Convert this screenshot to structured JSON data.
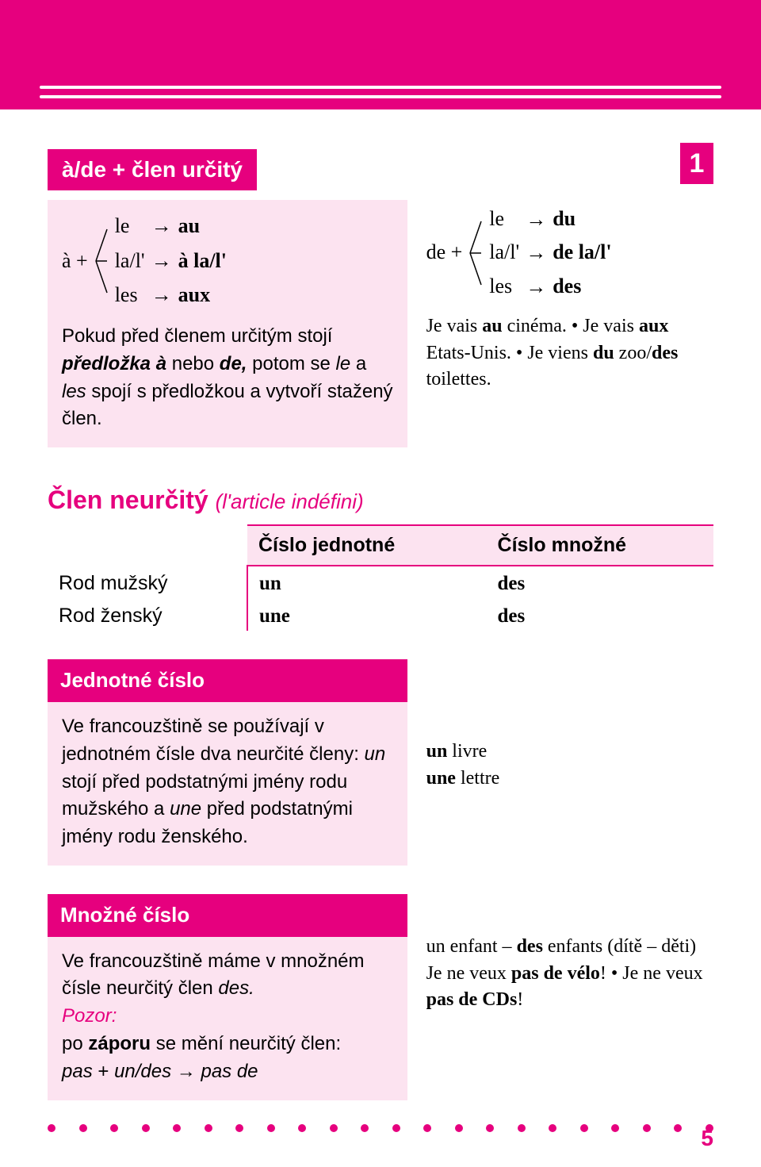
{
  "colors": {
    "accent": "#e6007e",
    "light": "#fce3f0",
    "text": "#000000",
    "white": "#ffffff"
  },
  "pageBadge": "1",
  "pageNumber": "5",
  "section1": {
    "title": "à/de + člen určitý",
    "left": {
      "prefix": "à  +",
      "rows": [
        {
          "from": "le",
          "to": "au"
        },
        {
          "from": "la/l'",
          "to": "à la/l'"
        },
        {
          "from": "les",
          "to": "aux"
        }
      ],
      "bodyHtml": "Pokud před členem určitým stojí <span class='boldital'>předložka à</span> nebo <span class='boldital'>de,</span> potom se <span class='italic'>le</span> a <span class='italic'>les</span> spojí s předložkou a vytvoří stažený člen."
    },
    "right": {
      "prefix": "de  +",
      "rows": [
        {
          "from": "le",
          "to": "du"
        },
        {
          "from": "la/l'",
          "to": "de la/l'"
        },
        {
          "from": "les",
          "to": "des"
        }
      ],
      "bodyHtml": "Je vais <span class='bold'>au</span> cinéma. • Je vais <span class='bold'>aux</span> Etats-Unis. • Je viens <span class='bold'>du</span> zoo/<span class='bold'>des</span> toilettes."
    }
  },
  "section2": {
    "heading": "Člen neurčitý",
    "subheading": "(l'article indéfini)",
    "table": {
      "headers": [
        "",
        "Číslo jednotné",
        "Číslo množné"
      ],
      "rows": [
        [
          "Rod mužský",
          "un",
          "des"
        ],
        [
          "Rod ženský",
          "une",
          "des"
        ]
      ]
    },
    "block1": {
      "title": "Jednotné číslo",
      "leftHtml": "Ve francouzštině se používají v jednotném čísle dva neurčité členy: <span class='italic'>un</span> stojí před podstatnými jmény rodu mužského a <span class='italic'>une</span> před podstatnými jmény rodu ženského.",
      "rightHtml": "<span class='bold'>un</span> livre<br><span class='bold'>une</span> lettre"
    },
    "block2": {
      "title": "Množné číslo",
      "leftHtml": "Ve francouzštině máme v množném čísle neurčitý člen <span class='italic'>des.</span><br><span class='italic pink-text'>Pozor:</span><br>po <span class='bold'>záporu</span> se mění neurčitý člen:<br><span class='italic'>pas</span>  + <span class='italic'>un/des</span> → <span class='italic'>pas de</span>",
      "rightHtml": "un enfant – <span class='bold'>des</span> enfants (dítě – děti)<br>Je ne veux <span class='bold'>pas de vélo</span>! • Je ne veux <span class='bold'>pas de CDs</span>!"
    }
  },
  "dotsCount": 22
}
